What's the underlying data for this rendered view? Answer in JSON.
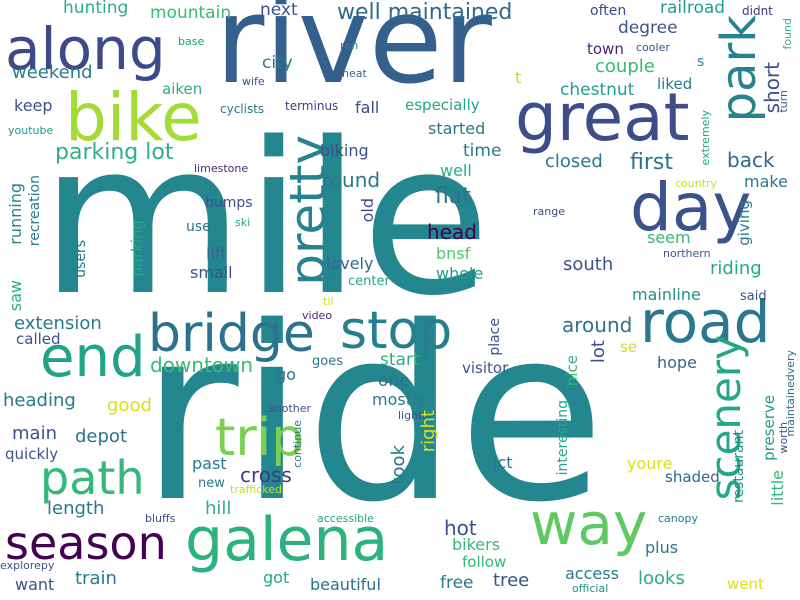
{
  "words": [
    {
      "text": "mile",
      "color": "#24868e"
    },
    {
      "text": "ride",
      "color": "#24868e"
    },
    {
      "text": "river",
      "color": "#355f8d"
    },
    {
      "text": "bike",
      "color": "#a5db36"
    },
    {
      "text": "along",
      "color": "#3e4989"
    },
    {
      "text": "great",
      "color": "#3e4c8a"
    },
    {
      "text": "park",
      "color": "#26828e"
    },
    {
      "text": "day",
      "color": "#3b528b"
    },
    {
      "text": "road",
      "color": "#2a788e"
    },
    {
      "text": "pretty",
      "color": "#26828e"
    },
    {
      "text": "bridge",
      "color": "#2c728e"
    },
    {
      "text": "stop",
      "color": "#277f8e"
    },
    {
      "text": "end",
      "color": "#20a386"
    },
    {
      "text": "trip",
      "color": "#7ad151"
    },
    {
      "text": "path",
      "color": "#35b779"
    },
    {
      "text": "season",
      "color": "#440154"
    },
    {
      "text": "galena",
      "color": "#2db27d"
    },
    {
      "text": "way",
      "color": "#5ec962"
    },
    {
      "text": "scenery",
      "color": "#22a884"
    },
    {
      "text": "well maintained",
      "color": "#31688e"
    },
    {
      "text": "weekend",
      "color": "#287d8e"
    },
    {
      "text": "hunting",
      "color": "#29af7f"
    },
    {
      "text": "mountain",
      "color": "#38b977"
    },
    {
      "text": "next",
      "color": "#3b528b"
    },
    {
      "text": "often",
      "color": "#3e4a89"
    },
    {
      "text": "railroad",
      "color": "#1fa088"
    },
    {
      "text": "didnt",
      "color": "#46337e"
    },
    {
      "text": "found",
      "color": "#35b779"
    },
    {
      "text": "base",
      "color": "#1f9e89"
    },
    {
      "text": "ran",
      "color": "#26828e"
    },
    {
      "text": "cooler",
      "color": "#3b528b"
    },
    {
      "text": "town",
      "color": "#482475"
    },
    {
      "text": "couple",
      "color": "#38b977"
    },
    {
      "text": "degree",
      "color": "#39568c"
    },
    {
      "text": "s",
      "color": "#25858e"
    },
    {
      "text": "short",
      "color": "#3b528b"
    },
    {
      "text": "city",
      "color": "#2a788e"
    },
    {
      "text": "neat",
      "color": "#31688e"
    },
    {
      "text": "wife",
      "color": "#3b528b"
    },
    {
      "text": "aiken",
      "color": "#2db27d"
    },
    {
      "text": "keep",
      "color": "#3b528b"
    },
    {
      "text": "youtube",
      "color": "#1f9a8a"
    },
    {
      "text": "cyclists",
      "color": "#2c728e"
    },
    {
      "text": "terminus",
      "color": "#433d84"
    },
    {
      "text": "t",
      "color": "#bddf26"
    },
    {
      "text": "especially",
      "color": "#22a884"
    },
    {
      "text": "chestnut",
      "color": "#1fa088"
    },
    {
      "text": "liked",
      "color": "#2a788e"
    },
    {
      "text": "turn",
      "color": "#355f8d"
    },
    {
      "text": "extremely",
      "color": "#20a486"
    },
    {
      "text": "fall",
      "color": "#3e4a89"
    },
    {
      "text": "started",
      "color": "#2a788e"
    },
    {
      "text": "time",
      "color": "#2a788e"
    },
    {
      "text": "country",
      "color": "#c8e020"
    },
    {
      "text": "parking lot",
      "color": "#2db27d"
    },
    {
      "text": "biking",
      "color": "#3b528b"
    },
    {
      "text": "back",
      "color": "#31688e"
    },
    {
      "text": "first",
      "color": "#2c728e"
    },
    {
      "text": "closed",
      "color": "#2a788e"
    },
    {
      "text": "round",
      "color": "#2a788e"
    },
    {
      "text": "well",
      "color": "#29af7f"
    },
    {
      "text": "make",
      "color": "#2a788e"
    },
    {
      "text": "limestone",
      "color": "#482878"
    },
    {
      "text": "recreation",
      "color": "#2a788e"
    },
    {
      "text": "running",
      "color": "#26828e"
    },
    {
      "text": "bumps",
      "color": "#3b528b"
    },
    {
      "text": "ski",
      "color": "#22a884"
    },
    {
      "text": "use",
      "color": "#2c728e"
    },
    {
      "text": "old",
      "color": "#3e4a89"
    },
    {
      "text": "flat",
      "color": "#2c728e"
    },
    {
      "text": "range",
      "color": "#3e4989"
    },
    {
      "text": "head",
      "color": "#440154"
    },
    {
      "text": "seem",
      "color": "#35b779"
    },
    {
      "text": "giving",
      "color": "#277f8e"
    },
    {
      "text": "northern",
      "color": "#3b528b"
    },
    {
      "text": "lift",
      "color": "#31688e"
    },
    {
      "text": "bnsf",
      "color": "#52c569"
    },
    {
      "text": "south",
      "color": "#3b528b"
    },
    {
      "text": "lovely",
      "color": "#31688e"
    },
    {
      "text": "riding",
      "color": "#22a884"
    },
    {
      "text": "users",
      "color": "#2c728e"
    },
    {
      "text": "small",
      "color": "#3b528b"
    },
    {
      "text": "whole",
      "color": "#1f9e89"
    },
    {
      "text": "center",
      "color": "#22a884"
    },
    {
      "text": "saw",
      "color": "#29af7f"
    },
    {
      "text": "parking",
      "color": "#22a884"
    },
    {
      "text": "mainline",
      "color": "#21918c"
    },
    {
      "text": "said",
      "color": "#3b528b"
    },
    {
      "text": "til",
      "color": "#c8e020"
    },
    {
      "text": "video",
      "color": "#482878"
    },
    {
      "text": "extension",
      "color": "#2a788e"
    },
    {
      "text": "around",
      "color": "#2c728e"
    },
    {
      "text": "place",
      "color": "#3b528b"
    },
    {
      "text": "called",
      "color": "#3b528b"
    },
    {
      "text": "lot",
      "color": "#3b528b"
    },
    {
      "text": "preserve",
      "color": "#1f9a8a"
    },
    {
      "text": "maintainedvery",
      "color": "#31688e"
    },
    {
      "text": "downtown",
      "color": "#38b977"
    },
    {
      "text": "goes",
      "color": "#2a788e"
    },
    {
      "text": "start",
      "color": "#2db27d"
    },
    {
      "text": "nice",
      "color": "#35b779"
    },
    {
      "text": "se",
      "color": "#d8e219"
    },
    {
      "text": "hope",
      "color": "#31688e"
    },
    {
      "text": "go",
      "color": "#2c728e"
    },
    {
      "text": "visitor",
      "color": "#3b528b"
    },
    {
      "text": "heading",
      "color": "#2a788e"
    },
    {
      "text": "one",
      "color": "#2c728e"
    },
    {
      "text": "mostly",
      "color": "#2a788e"
    },
    {
      "text": "good",
      "color": "#d8e219"
    },
    {
      "text": "another",
      "color": "#3b528b"
    },
    {
      "text": "lightly",
      "color": "#3b528b"
    },
    {
      "text": "worth",
      "color": "#3b528b"
    },
    {
      "text": "continue",
      "color": "#2a788e"
    },
    {
      "text": "main",
      "color": "#3b528b"
    },
    {
      "text": "depot",
      "color": "#2c728e"
    },
    {
      "text": "right",
      "color": "#d8e219"
    },
    {
      "text": "interesting",
      "color": "#22a884"
    },
    {
      "text": "restaurant",
      "color": "#21918c"
    },
    {
      "text": "little",
      "color": "#35b779"
    },
    {
      "text": "quickly",
      "color": "#3b528b"
    },
    {
      "text": "cross",
      "color": "#443983"
    },
    {
      "text": "past",
      "color": "#2a788e"
    },
    {
      "text": "took",
      "color": "#2a788e"
    },
    {
      "text": "jct",
      "color": "#2a788e"
    },
    {
      "text": "youre",
      "color": "#d8e219"
    },
    {
      "text": "shaded",
      "color": "#31688e"
    },
    {
      "text": "new",
      "color": "#2a788e"
    },
    {
      "text": "trafficked",
      "color": "#c8e020"
    },
    {
      "text": "length",
      "color": "#2a788e"
    },
    {
      "text": "hill",
      "color": "#2db27d"
    },
    {
      "text": "bluffs",
      "color": "#3e4989"
    },
    {
      "text": "accessible",
      "color": "#20a486"
    },
    {
      "text": "canopy",
      "color": "#2a788e"
    },
    {
      "text": "hot",
      "color": "#3b528b"
    },
    {
      "text": "bikers",
      "color": "#38b977"
    },
    {
      "text": "plus",
      "color": "#2a788e"
    },
    {
      "text": "follow",
      "color": "#35b779"
    },
    {
      "text": "explorepy",
      "color": "#3b528b"
    },
    {
      "text": "want",
      "color": "#3b528b"
    },
    {
      "text": "train",
      "color": "#2a788e"
    },
    {
      "text": "got",
      "color": "#22a884"
    },
    {
      "text": "beautiful",
      "color": "#2c728e"
    },
    {
      "text": "free",
      "color": "#2a788e"
    },
    {
      "text": "tree",
      "color": "#3b528b"
    },
    {
      "text": "access",
      "color": "#2a788e"
    },
    {
      "text": "looks",
      "color": "#29af7f"
    },
    {
      "text": "went",
      "color": "#d8e219"
    },
    {
      "text": "official",
      "color": "#21918c"
    }
  ]
}
